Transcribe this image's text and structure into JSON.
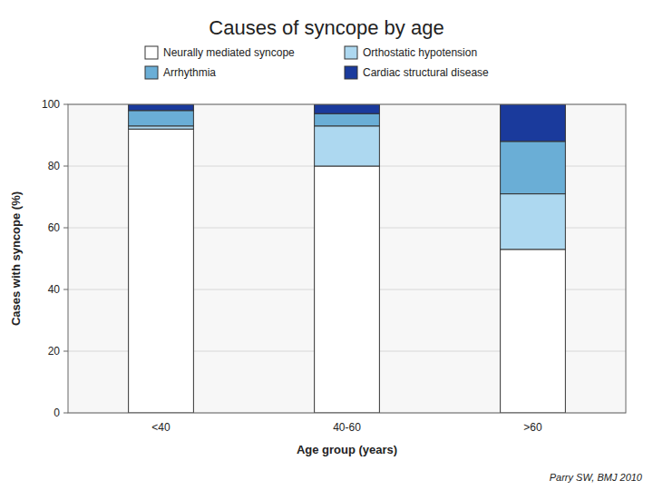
{
  "chart_data": {
    "type": "bar",
    "stacked": true,
    "title": "Causes of syncope by age",
    "subtitle": "Parry SW, BMJ 2010",
    "xlabel": "Age group (years)",
    "ylabel": "Cases with syncope (%)",
    "categories": [
      "<40",
      "40-60",
      ">60"
    ],
    "series": [
      {
        "name": "Neurally mediated syncope",
        "color": "#ffffff",
        "values": [
          92,
          80,
          53
        ]
      },
      {
        "name": "Orthostatic hypotension",
        "color": "#add8f0",
        "values": [
          1,
          13,
          18
        ]
      },
      {
        "name": "Arrhythmia",
        "color": "#6aaed6",
        "values": [
          5,
          4,
          17
        ]
      },
      {
        "name": "Cardiac structural disease",
        "color": "#1a3a9c",
        "values": [
          2,
          3,
          12
        ]
      }
    ],
    "ylim": [
      0,
      100
    ],
    "yticks": [
      0,
      20,
      40,
      60,
      80,
      100
    ],
    "grid": true,
    "legend": "top"
  }
}
